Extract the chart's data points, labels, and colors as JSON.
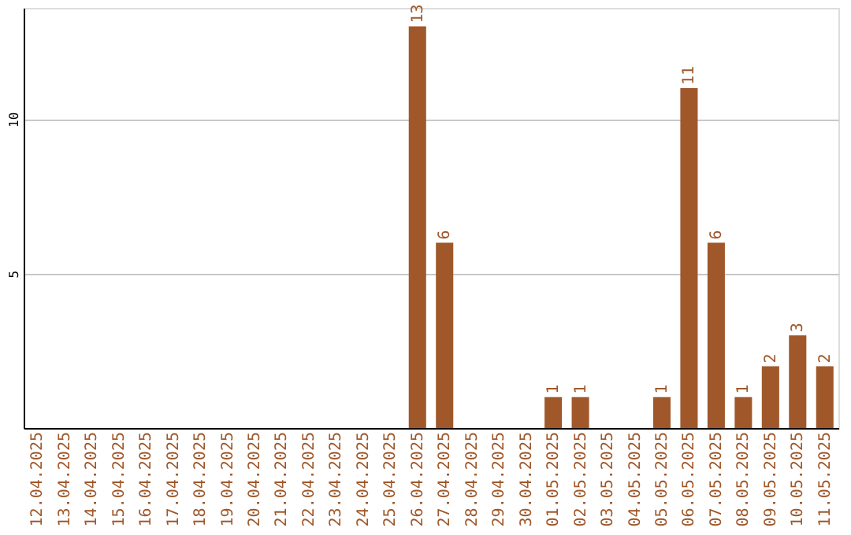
{
  "chart_data": {
    "type": "bar",
    "categories": [
      "12.04.2025",
      "13.04.2025",
      "14.04.2025",
      "15.04.2025",
      "16.04.2025",
      "17.04.2025",
      "18.04.2025",
      "19.04.2025",
      "20.04.2025",
      "21.04.2025",
      "22.04.2025",
      "23.04.2025",
      "24.04.2025",
      "25.04.2025",
      "26.04.2025",
      "27.04.2025",
      "28.04.2025",
      "29.04.2025",
      "30.04.2025",
      "01.05.2025",
      "02.05.2025",
      "03.05.2025",
      "04.05.2025",
      "05.05.2025",
      "06.05.2025",
      "07.05.2025",
      "08.05.2025",
      "09.05.2025",
      "10.05.2025",
      "11.05.2025"
    ],
    "values": [
      0,
      0,
      0,
      0,
      0,
      0,
      0,
      0,
      0,
      0,
      0,
      0,
      0,
      0,
      13,
      6,
      0,
      0,
      0,
      1,
      1,
      0,
      0,
      1,
      11,
      6,
      1,
      2,
      3,
      2
    ],
    "value_labels": [
      null,
      null,
      null,
      null,
      null,
      null,
      null,
      null,
      null,
      null,
      null,
      null,
      null,
      null,
      "13",
      "6",
      null,
      null,
      null,
      "1",
      "1",
      null,
      null,
      "1",
      "11",
      "6",
      "1",
      "2",
      "3",
      "2"
    ],
    "color": "#a0582a",
    "ylim": [
      0,
      13.6
    ],
    "yticks": [
      5,
      10
    ],
    "grid": "y"
  }
}
